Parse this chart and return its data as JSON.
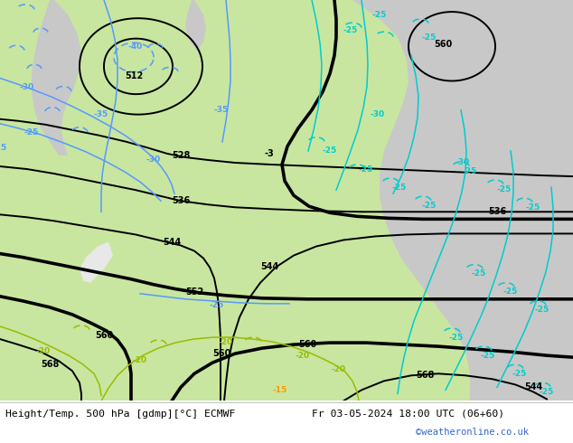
{
  "title_left": "Height/Temp. 500 hPa [gdmp][°C] ECMWF",
  "title_right": "Fr 03-05-2024 18:00 UTC (06+60)",
  "credit": "©weatheronline.co.uk",
  "bg_green": "#c8e6a0",
  "bg_gray": "#c8c8c8",
  "bg_white": "#ffffff",
  "black": "#000000",
  "blue": "#5599ff",
  "cyan": "#00cccc",
  "green_label": "#99bb00",
  "orange_label": "#ff9900",
  "credit_color": "#3366cc",
  "footer_line_color": "#aaaaaa"
}
